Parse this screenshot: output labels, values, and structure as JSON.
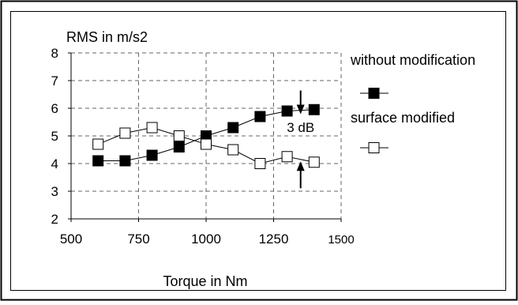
{
  "chart_data": {
    "type": "line",
    "ylabel": "RMS in m/s2",
    "xlabel": "Torque in Nm",
    "xlim": [
      500,
      1500
    ],
    "ylim": [
      2,
      8
    ],
    "x_ticks": [
      "500",
      "750",
      "1000",
      "1250",
      "1500"
    ],
    "y_ticks": [
      "2",
      "3",
      "4",
      "5",
      "6",
      "7",
      "8"
    ],
    "grid": "dashed",
    "legend_position": "right",
    "series": [
      {
        "name": "without modification",
        "marker": "filled-square",
        "x": [
          600,
          700,
          800,
          900,
          1000,
          1100,
          1200,
          1300,
          1400
        ],
        "values": [
          4.1,
          4.1,
          4.3,
          4.6,
          5.0,
          5.3,
          5.7,
          5.9,
          5.95
        ]
      },
      {
        "name": "surface modified",
        "marker": "open-square",
        "x": [
          600,
          700,
          800,
          900,
          1000,
          1100,
          1200,
          1300,
          1400
        ],
        "values": [
          4.7,
          5.1,
          5.3,
          5.0,
          4.7,
          4.5,
          4.0,
          4.25,
          4.05
        ]
      }
    ],
    "annotations": [
      {
        "text": "3 dB",
        "x": 1350
      }
    ],
    "colors": {
      "line": "#000000",
      "grid": "#666666",
      "frame": "#000000",
      "background": "#ffffff"
    }
  }
}
